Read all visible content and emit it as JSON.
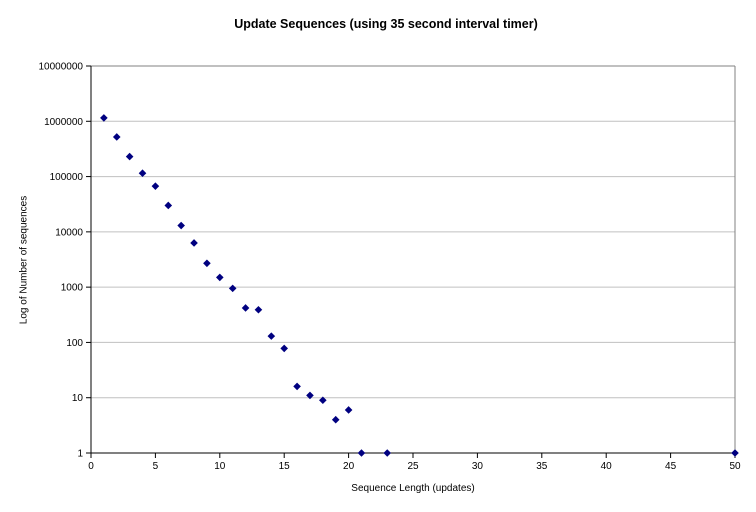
{
  "chart_data": {
    "type": "scatter",
    "title": "Update Sequences (using 35 second interval timer)",
    "xlabel": "Sequence Length (updates)",
    "ylabel": "Log of Number of sequences",
    "x_ticks": [
      0,
      5,
      10,
      15,
      20,
      25,
      30,
      35,
      40,
      45,
      50
    ],
    "y_ticks": [
      1,
      10,
      100,
      1000,
      10000,
      100000,
      1000000,
      10000000
    ],
    "xlim": [
      0,
      50
    ],
    "ylim": [
      1,
      10000000
    ],
    "y_scale": "log10",
    "grid": "horizontal",
    "legend": "none",
    "series": [
      {
        "name": "sequences",
        "marker": "diamond",
        "color": "#000080",
        "points": [
          {
            "x": 1,
            "y": 1150000
          },
          {
            "x": 2,
            "y": 520000
          },
          {
            "x": 3,
            "y": 230000
          },
          {
            "x": 4,
            "y": 115000
          },
          {
            "x": 5,
            "y": 67000
          },
          {
            "x": 6,
            "y": 30000
          },
          {
            "x": 7,
            "y": 13000
          },
          {
            "x": 8,
            "y": 6300
          },
          {
            "x": 9,
            "y": 2700
          },
          {
            "x": 10,
            "y": 1500
          },
          {
            "x": 11,
            "y": 950
          },
          {
            "x": 12,
            "y": 420
          },
          {
            "x": 13,
            "y": 390
          },
          {
            "x": 14,
            "y": 130
          },
          {
            "x": 15,
            "y": 78
          },
          {
            "x": 16,
            "y": 16
          },
          {
            "x": 17,
            "y": 11
          },
          {
            "x": 18,
            "y": 9
          },
          {
            "x": 19,
            "y": 4
          },
          {
            "x": 20,
            "y": 6
          },
          {
            "x": 21,
            "y": 1
          },
          {
            "x": 23,
            "y": 1
          },
          {
            "x": 50,
            "y": 1
          }
        ]
      }
    ],
    "colors": {
      "marker": "#000080",
      "gridline": "#c0c0c0",
      "frame": "#808080",
      "axis": "#000000",
      "background": "#ffffff"
    }
  }
}
